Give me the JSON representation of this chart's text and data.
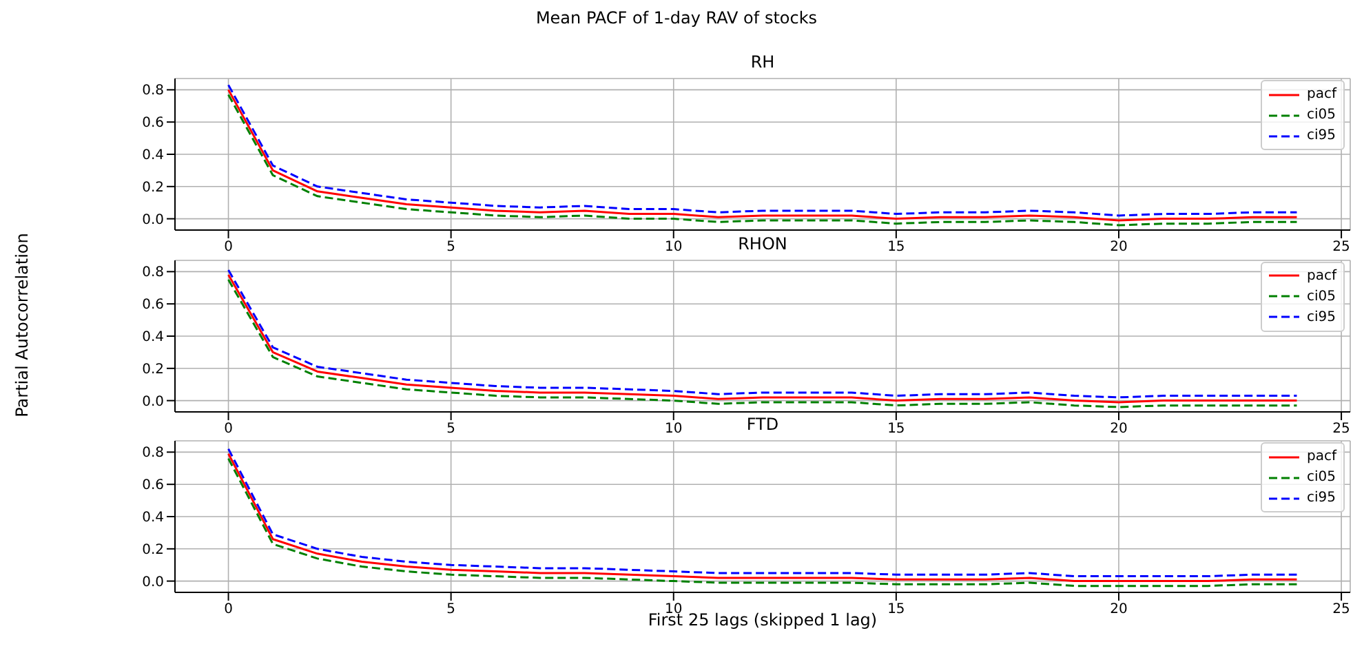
{
  "chart_data": [
    {
      "type": "line",
      "title": "RH",
      "annotations": [
        "Mean PACF of 1-day RAV of stocks"
      ],
      "x": [
        0,
        1,
        2,
        3,
        4,
        5,
        6,
        7,
        8,
        9,
        10,
        11,
        12,
        13,
        14,
        15,
        16,
        17,
        18,
        19,
        20,
        21,
        22,
        23,
        24
      ],
      "series": [
        {
          "name": "pacf",
          "color": "#ff0000",
          "line_style": "solid",
          "values": [
            0.8,
            0.3,
            0.17,
            0.13,
            0.09,
            0.07,
            0.05,
            0.04,
            0.05,
            0.03,
            0.03,
            0.01,
            0.02,
            0.02,
            0.02,
            0.0,
            0.01,
            0.01,
            0.02,
            0.01,
            -0.01,
            0.0,
            0.0,
            0.01,
            0.01
          ]
        },
        {
          "name": "ci05",
          "color": "#008000",
          "line_style": "dashed",
          "values": [
            0.77,
            0.27,
            0.14,
            0.1,
            0.06,
            0.04,
            0.02,
            0.01,
            0.02,
            0.0,
            0.0,
            -0.02,
            -0.01,
            -0.01,
            -0.01,
            -0.03,
            -0.02,
            -0.02,
            -0.01,
            -0.02,
            -0.04,
            -0.03,
            -0.03,
            -0.02,
            -0.02
          ]
        },
        {
          "name": "ci95",
          "color": "#0000ff",
          "line_style": "dashed",
          "values": [
            0.83,
            0.33,
            0.2,
            0.16,
            0.12,
            0.1,
            0.08,
            0.07,
            0.08,
            0.06,
            0.06,
            0.04,
            0.05,
            0.05,
            0.05,
            0.03,
            0.04,
            0.04,
            0.05,
            0.04,
            0.02,
            0.03,
            0.03,
            0.04,
            0.04
          ]
        }
      ],
      "xlim": [
        -1.2,
        25.2
      ],
      "xticks": [
        0,
        5,
        10,
        15,
        20,
        25
      ],
      "ylim": [
        -0.07,
        0.87
      ],
      "yticks": [
        {
          "value": 0,
          "label": "0.0"
        },
        {
          "value": 0.2,
          "label": "0.2"
        },
        {
          "value": 0.4,
          "label": "0.4"
        },
        {
          "value": 0.6,
          "label": "0.6"
        },
        {
          "value": 0.8,
          "label": "0.8"
        }
      ],
      "grid": true,
      "legend": "top right"
    },
    {
      "type": "line",
      "title": "RHON",
      "ylabel": "Partial Autocorrelation",
      "x": [
        0,
        1,
        2,
        3,
        4,
        5,
        6,
        7,
        8,
        9,
        10,
        11,
        12,
        13,
        14,
        15,
        16,
        17,
        18,
        19,
        20,
        21,
        22,
        23,
        24
      ],
      "series": [
        {
          "name": "pacf",
          "color": "#ff0000",
          "line_style": "solid",
          "values": [
            0.78,
            0.3,
            0.18,
            0.14,
            0.1,
            0.08,
            0.06,
            0.05,
            0.05,
            0.04,
            0.03,
            0.01,
            0.02,
            0.02,
            0.02,
            0.0,
            0.01,
            0.01,
            0.02,
            0.0,
            -0.01,
            0.0,
            0.0,
            0.0,
            0.0
          ]
        },
        {
          "name": "ci05",
          "color": "#008000",
          "line_style": "dashed",
          "values": [
            0.75,
            0.27,
            0.15,
            0.11,
            0.07,
            0.05,
            0.03,
            0.02,
            0.02,
            0.01,
            0.0,
            -0.02,
            -0.01,
            -0.01,
            -0.01,
            -0.03,
            -0.02,
            -0.02,
            -0.01,
            -0.03,
            -0.04,
            -0.03,
            -0.03,
            -0.03,
            -0.03
          ]
        },
        {
          "name": "ci95",
          "color": "#0000ff",
          "line_style": "dashed",
          "values": [
            0.81,
            0.33,
            0.21,
            0.17,
            0.13,
            0.11,
            0.09,
            0.08,
            0.08,
            0.07,
            0.06,
            0.04,
            0.05,
            0.05,
            0.05,
            0.03,
            0.04,
            0.04,
            0.05,
            0.03,
            0.02,
            0.03,
            0.03,
            0.03,
            0.03
          ]
        }
      ],
      "xlim": [
        -1.2,
        25.2
      ],
      "xticks": [
        0,
        5,
        10,
        15,
        20,
        25
      ],
      "ylim": [
        -0.07,
        0.87
      ],
      "yticks": [
        {
          "value": 0,
          "label": "0.0"
        },
        {
          "value": 0.2,
          "label": "0.2"
        },
        {
          "value": 0.4,
          "label": "0.4"
        },
        {
          "value": 0.6,
          "label": "0.6"
        },
        {
          "value": 0.8,
          "label": "0.8"
        }
      ],
      "grid": true,
      "legend": "top right"
    },
    {
      "type": "line",
      "title": "FTD",
      "xlabel": "First 25 lags (skipped 1 lag)",
      "x": [
        0,
        1,
        2,
        3,
        4,
        5,
        6,
        7,
        8,
        9,
        10,
        11,
        12,
        13,
        14,
        15,
        16,
        17,
        18,
        19,
        20,
        21,
        22,
        23,
        24
      ],
      "series": [
        {
          "name": "pacf",
          "color": "#ff0000",
          "line_style": "solid",
          "values": [
            0.79,
            0.26,
            0.17,
            0.12,
            0.09,
            0.07,
            0.06,
            0.05,
            0.05,
            0.04,
            0.03,
            0.02,
            0.02,
            0.02,
            0.02,
            0.01,
            0.01,
            0.01,
            0.02,
            0.0,
            0.0,
            0.0,
            0.0,
            0.01,
            0.01
          ]
        },
        {
          "name": "ci05",
          "color": "#008000",
          "line_style": "dashed",
          "values": [
            0.76,
            0.23,
            0.14,
            0.09,
            0.06,
            0.04,
            0.03,
            0.02,
            0.02,
            0.01,
            0.0,
            -0.01,
            -0.01,
            -0.01,
            -0.01,
            -0.02,
            -0.02,
            -0.02,
            -0.01,
            -0.03,
            -0.03,
            -0.03,
            -0.03,
            -0.02,
            -0.02
          ]
        },
        {
          "name": "ci95",
          "color": "#0000ff",
          "line_style": "dashed",
          "values": [
            0.82,
            0.29,
            0.2,
            0.15,
            0.12,
            0.1,
            0.09,
            0.08,
            0.08,
            0.07,
            0.06,
            0.05,
            0.05,
            0.05,
            0.05,
            0.04,
            0.04,
            0.04,
            0.05,
            0.03,
            0.03,
            0.03,
            0.03,
            0.04,
            0.04
          ]
        }
      ],
      "xlim": [
        -1.2,
        25.2
      ],
      "xticks": [
        0,
        5,
        10,
        15,
        20,
        25
      ],
      "ylim": [
        -0.07,
        0.87
      ],
      "yticks": [
        {
          "value": 0,
          "label": "0.0"
        },
        {
          "value": 0.2,
          "label": "0.2"
        },
        {
          "value": 0.4,
          "label": "0.4"
        },
        {
          "value": 0.6,
          "label": "0.6"
        },
        {
          "value": 0.8,
          "label": "0.8"
        }
      ],
      "grid": true,
      "legend": "top right"
    }
  ]
}
